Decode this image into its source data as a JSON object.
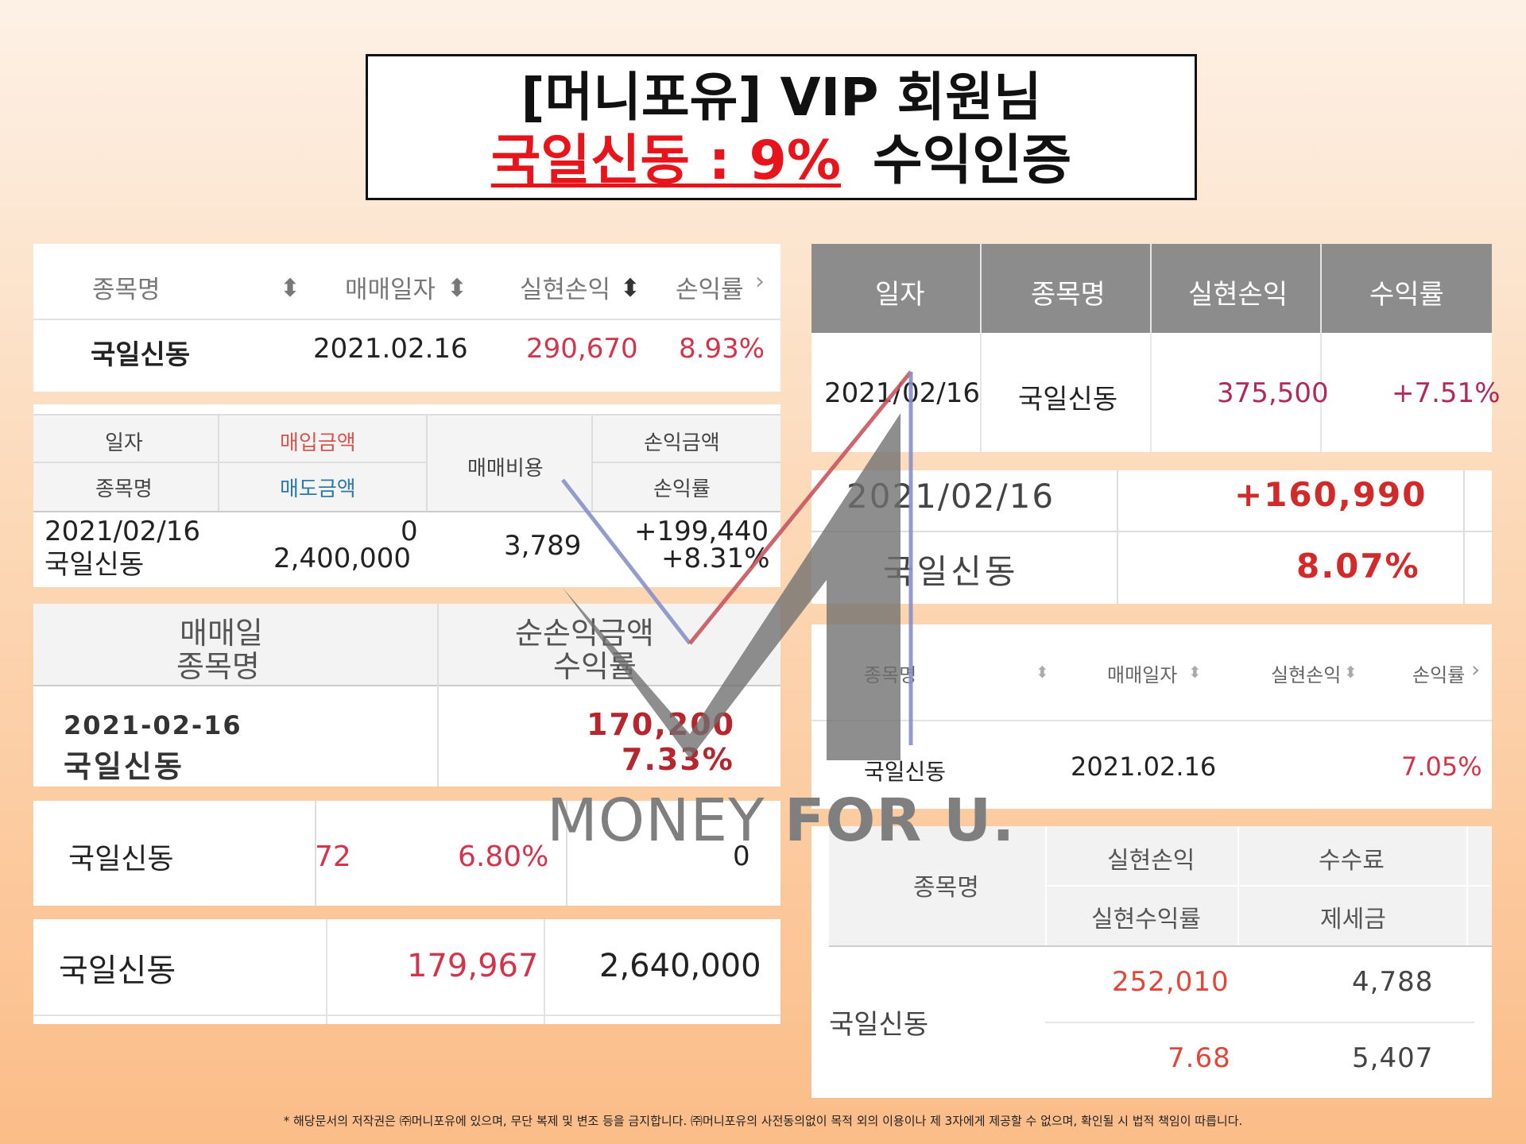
{
  "title": {
    "line1": "[머니포유] VIP 회원님",
    "highlight": "국일신동 : 9%",
    "suffix": "수익인증"
  },
  "panel_a": {
    "headers": [
      "종목명",
      "매매일자",
      "실현손익",
      "손익률"
    ],
    "row": {
      "name": "국일신동",
      "date": "2021.02.16",
      "profit": "290,670",
      "rate": "8.93%"
    }
  },
  "panel_b": {
    "headers": {
      "date": "일자",
      "buy": "매입금액",
      "cost": "매매비용",
      "pnl": "손익금액",
      "name": "종목명",
      "sell": "매도금액",
      "rate": "손익률"
    },
    "row": {
      "date": "2021/02/16",
      "name": "국일신동",
      "buy": "0",
      "sell": "2,400,000",
      "cost": "3,789",
      "pnl": "+199,440",
      "rate": "+8.31%"
    }
  },
  "panel_c": {
    "headers": {
      "left1": "매매일",
      "left2": "종목명",
      "right1": "순손익금액",
      "right2": "수익률"
    },
    "row": {
      "date": "2021-02-16",
      "name": "국일신동",
      "profit": "170,200",
      "rate": "7.33%"
    }
  },
  "panel_d": {
    "name": "국일신동",
    "partial": "72",
    "rate": "6.80%",
    "value": "0"
  },
  "panel_e": {
    "name": "국일신동",
    "profit": "179,967",
    "amount": "2,640,000"
  },
  "panel_f": {
    "headers": [
      "일자",
      "종목명",
      "실현손익",
      "수익률"
    ],
    "row": {
      "date": "2021/02/16",
      "name": "국일신동",
      "profit": "375,500",
      "rate": "+7.51%"
    }
  },
  "panel_g": {
    "date": "2021/02/16",
    "profit": "+160,990",
    "name": "국일신동",
    "rate": "8.07%"
  },
  "panel_h": {
    "headers": [
      "종목명",
      "매매일자",
      "실현손익",
      "손익률"
    ],
    "row": {
      "name": "국일신동",
      "date": "2021.02.16",
      "rate": "7.05%"
    }
  },
  "panel_i": {
    "headers": {
      "name": "종목명",
      "pnl": "실현손익",
      "fee": "수수료",
      "rate": "실현수익률",
      "tax": "제세금"
    },
    "row": {
      "name": "국일신동",
      "pnl": "252,010",
      "fee": "4,788",
      "rate": "7.68",
      "tax": "5,407"
    }
  },
  "watermark": {
    "part1": "MONEY ",
    "part2": "FOR U."
  },
  "footer": "* 해당문서의 저작권은 ㈜머니포유에 있으며, 무단 복제 및 변조 등을 금지합니다. ㈜머니포유의 사전동의없이 목적 외의 이용이나 제 3자에게 제공할 수 없으며, 확인될 시 법적 책임이 따릅니다.",
  "colors": {
    "accent_red": "#e8141b",
    "profit_red": "#d4344a",
    "header_gray": "#8c8c8c",
    "buy_red": "#d9534f",
    "sell_blue": "#2a7ab0"
  }
}
